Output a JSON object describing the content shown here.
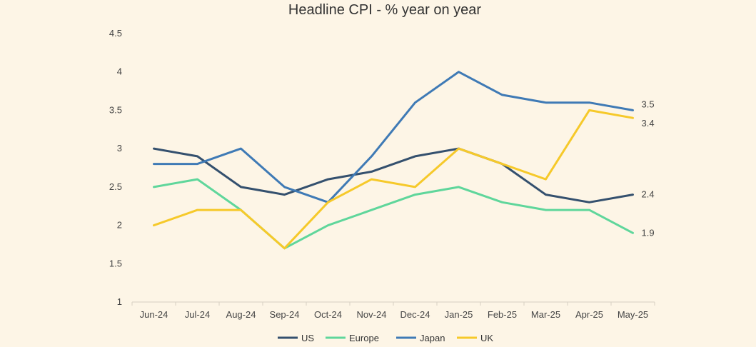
{
  "chart_data": {
    "type": "line",
    "title": "Headline CPI - % year on year",
    "xlabel": "",
    "ylabel": "",
    "categories": [
      "Jun-24",
      "Jul-24",
      "Aug-24",
      "Sep-24",
      "Oct-24",
      "Nov-24",
      "Dec-24",
      "Jan-25",
      "Feb-25",
      "Mar-25",
      "Apr-25",
      "May-25"
    ],
    "ylim": [
      1,
      4.5
    ],
    "yticks": [
      "1",
      "1.5",
      "2",
      "2.5",
      "3",
      "3.5",
      "4",
      "4.5"
    ],
    "grid": false,
    "legend_position": "bottom",
    "series": [
      {
        "name": "US",
        "color": "#34506e",
        "values": [
          3.0,
          2.9,
          2.5,
          2.4,
          2.6,
          2.7,
          2.9,
          3.0,
          2.8,
          2.4,
          2.3,
          2.4
        ],
        "end_label": "2.4"
      },
      {
        "name": "Europe",
        "color": "#5fd69b",
        "values": [
          2.5,
          2.6,
          2.2,
          1.7,
          2.0,
          2.2,
          2.4,
          2.5,
          2.3,
          2.2,
          2.2,
          1.9
        ],
        "end_label": "1.9"
      },
      {
        "name": "Japan",
        "color": "#3f7ab5",
        "values": [
          2.8,
          2.8,
          3.0,
          2.5,
          2.3,
          2.9,
          3.6,
          4.0,
          3.7,
          3.6,
          3.6,
          3.5
        ],
        "end_label": "3.5"
      },
      {
        "name": "UK",
        "color": "#f6c92a",
        "values": [
          2.0,
          2.2,
          2.2,
          1.7,
          2.3,
          2.6,
          2.5,
          3.0,
          2.8,
          2.6,
          3.5,
          3.4
        ],
        "end_label": "3.4"
      }
    ]
  }
}
